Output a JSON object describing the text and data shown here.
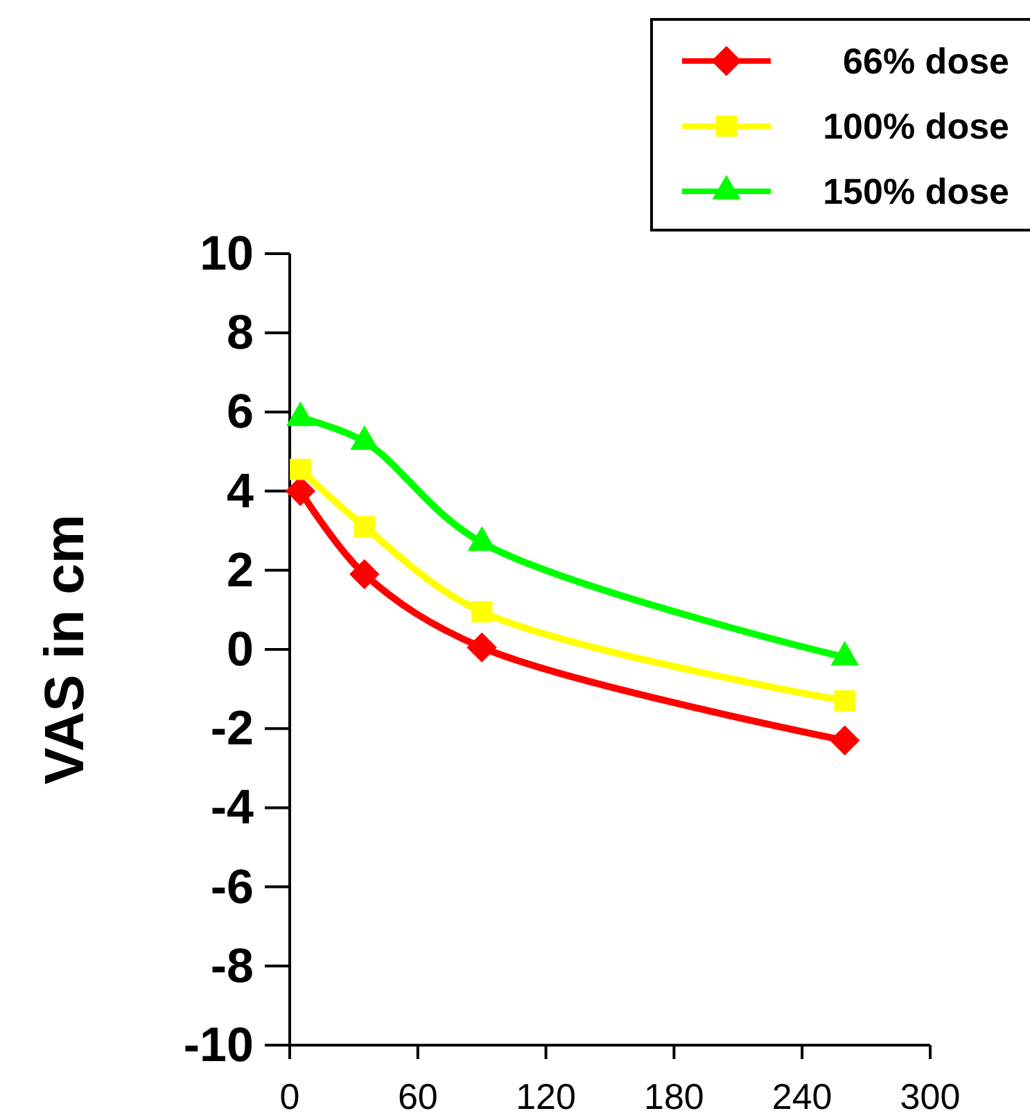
{
  "chart_data": {
    "type": "line",
    "ylabel": "VAS in cm",
    "x": [
      5,
      35,
      90,
      260
    ],
    "series": [
      {
        "name": "66% dose",
        "color": "#ff0000",
        "marker": "diamond",
        "values": [
          4.0,
          1.9,
          0.05,
          -2.3
        ]
      },
      {
        "name": "100% dose",
        "color": "#ffff00",
        "marker": "square",
        "values": [
          4.55,
          3.1,
          0.95,
          -1.3
        ]
      },
      {
        "name": "150% dose",
        "color": "#00ff00",
        "marker": "triangle",
        "values": [
          5.85,
          5.25,
          2.7,
          -0.2
        ]
      }
    ],
    "xlim": [
      0,
      300
    ],
    "xticks": [
      0,
      60,
      120,
      180,
      240,
      300
    ],
    "ylim": [
      -10,
      10
    ],
    "yticks": [
      -10,
      -8,
      -6,
      -4,
      -2,
      0,
      2,
      4,
      6,
      8,
      10
    ],
    "grid": false,
    "legend": "top right"
  }
}
